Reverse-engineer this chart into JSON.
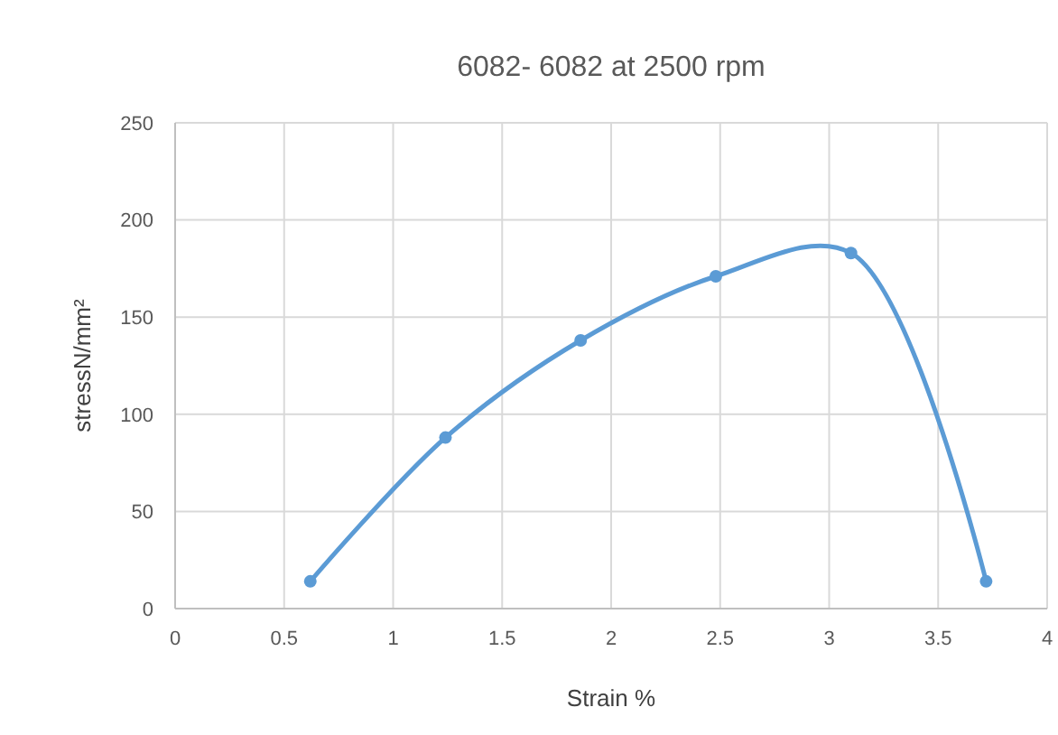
{
  "chart_data": {
    "type": "line",
    "title": "6082- 6082 at 2500 rpm",
    "xlabel": "Strain  %",
    "ylabel": "stressN/mm²",
    "x": [
      0.62,
      1.24,
      1.86,
      2.48,
      3.1,
      3.72
    ],
    "series": [
      {
        "color": "#5b9bd5",
        "values": [
          14,
          88,
          138,
          171,
          183,
          14
        ]
      }
    ],
    "xlim": [
      0,
      4
    ],
    "xticks": [
      0,
      0.5,
      1,
      1.5,
      2,
      2.5,
      3,
      3.5,
      4
    ],
    "ylim": [
      0,
      250
    ],
    "yticks": [
      0,
      50,
      100,
      150,
      200,
      250
    ],
    "grid": true,
    "marker": "circle",
    "line_style": "solid"
  }
}
